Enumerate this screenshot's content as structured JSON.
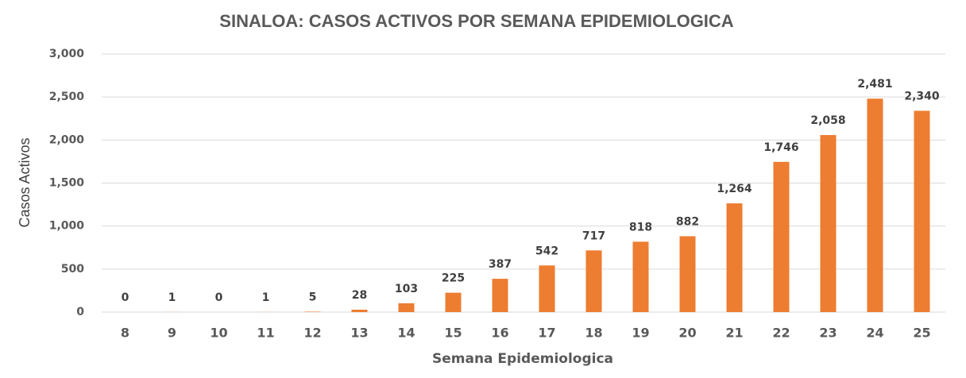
{
  "chart_data": {
    "type": "bar",
    "title": "SINALOA: CASOS ACTIVOS POR SEMANA EPIDEMIOLOGICA",
    "x_label": "Semana Epidemiologica",
    "y_label": "Casos Activos",
    "categories": [
      "8",
      "9",
      "10",
      "11",
      "12",
      "13",
      "14",
      "15",
      "16",
      "17",
      "18",
      "19",
      "20",
      "21",
      "22",
      "23",
      "24",
      "25"
    ],
    "values": [
      0,
      1,
      0,
      1,
      5,
      28,
      103,
      225,
      387,
      542,
      717,
      818,
      882,
      1264,
      1746,
      2058,
      2481,
      2340
    ],
    "value_labels": [
      "0",
      "1",
      "0",
      "1",
      "5",
      "28",
      "103",
      "225",
      "387",
      "542",
      "717",
      "818",
      "882",
      "1,264",
      "1,746",
      "2,058",
      "2,481",
      "2,340"
    ],
    "color": "#ed7d31",
    "ylim": [
      0,
      3000
    ],
    "yticks": [
      0,
      500,
      {
        "value": 1000,
        "label": "1,000"
      },
      {
        "value": 1500,
        "label": "1,500"
      },
      {
        "value": 2000,
        "label": "2,000"
      },
      {
        "value": 2500,
        "label": "2,500"
      },
      {
        "value": 3000,
        "label": "3,000"
      }
    ],
    "grid": true
  }
}
